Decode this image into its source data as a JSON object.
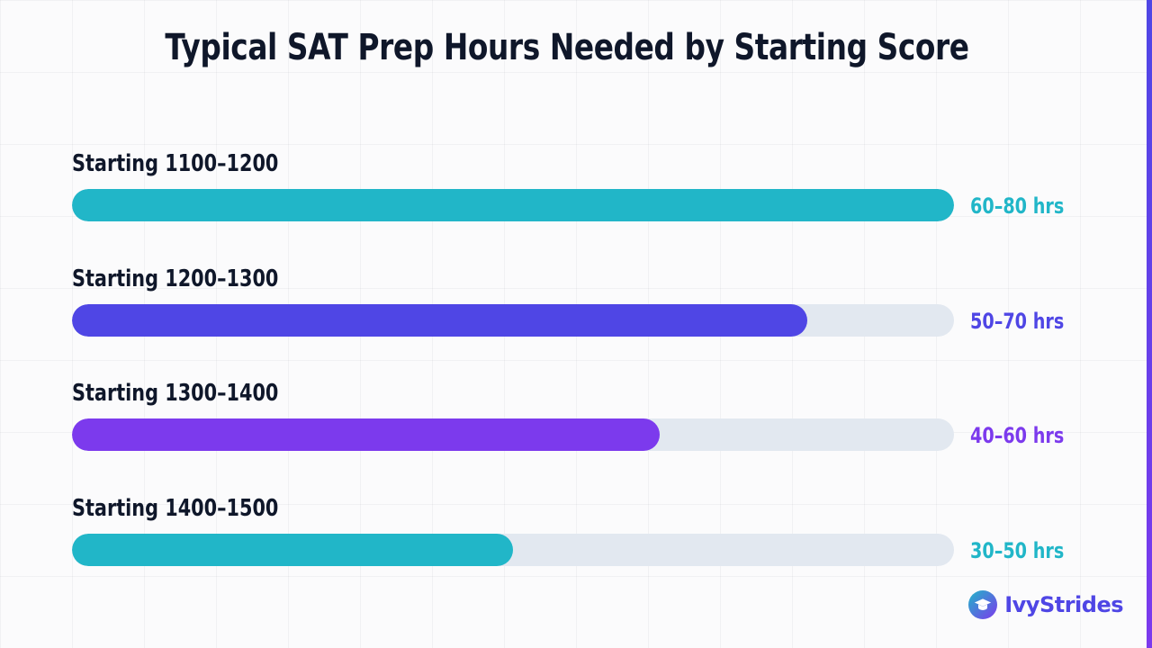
{
  "chart_data": {
    "type": "bar",
    "title": "Typical SAT Prep Hours Needed by Starting Score",
    "categories": [
      "Starting 1100–1200",
      "Starting 1200–1300",
      "Starting 1300–1400",
      "Starting 1400–1500"
    ],
    "value_labels": [
      "60–80 hrs",
      "50–70 hrs",
      "40–60 hrs",
      "30–50 hrs"
    ],
    "ranges": [
      [
        60,
        80
      ],
      [
        50,
        70
      ],
      [
        40,
        60
      ],
      [
        30,
        50
      ]
    ],
    "values": [
      80,
      70,
      60,
      50
    ],
    "xlim": [
      20,
      80
    ],
    "colors": [
      "#21b6c8",
      "#4f46e5",
      "#7c3aed",
      "#21b6c8"
    ],
    "track_color": "#e2e8f0",
    "grid": true
  },
  "brand": {
    "name": "IvyStrides",
    "icon": "graduation-cap-icon"
  }
}
